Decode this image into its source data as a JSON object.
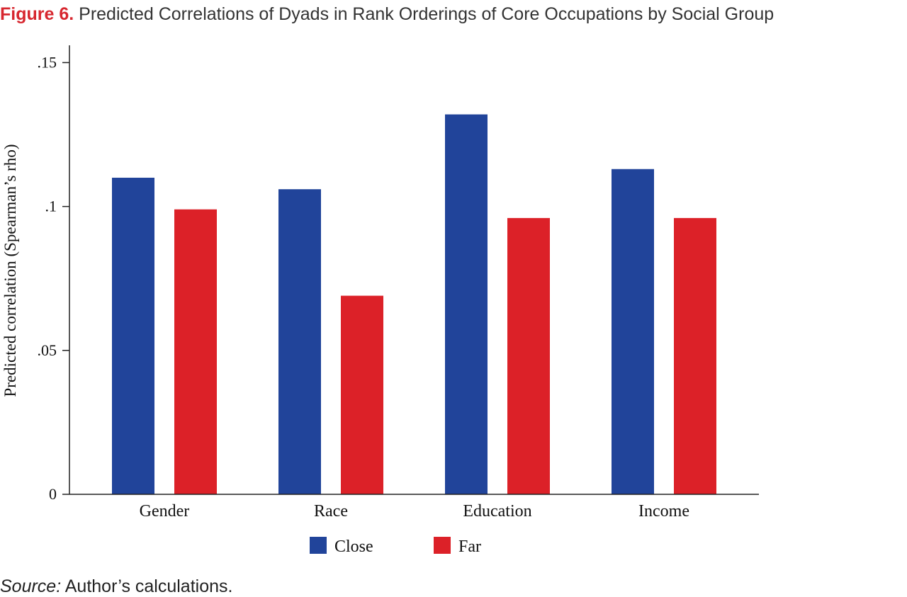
{
  "header": {
    "figure_label": "Figure 6.",
    "title_text": "Predicted Correlations of Dyads in Rank Orderings of Core Occupations by Social Group"
  },
  "footer": {
    "source_label": "Source:",
    "source_text": "Author’s calculations."
  },
  "chart_data": {
    "type": "bar",
    "title": "Predicted Correlations of Dyads in Rank Orderings of Core Occupations by Social Group",
    "categories": [
      "Gender",
      "Race",
      "Education",
      "Income"
    ],
    "series": [
      {
        "name": "Close",
        "color": "#21449a",
        "values": [
          0.11,
          0.106,
          0.132,
          0.113
        ]
      },
      {
        "name": "Far",
        "color": "#dc2128",
        "values": [
          0.099,
          0.069,
          0.096,
          0.096
        ]
      }
    ],
    "ylabel": "Predicted correlation (Spearman’s rho)",
    "xlabel": "",
    "ylim": [
      0,
      0.156
    ],
    "yticks": [
      {
        "value": 0,
        "label": "0"
      },
      {
        "value": 0.05,
        "label": ".05"
      },
      {
        "value": 0.1,
        "label": ".1"
      },
      {
        "value": 0.15,
        "label": ".15"
      }
    ],
    "grid": false,
    "legend": "bottom-center"
  }
}
